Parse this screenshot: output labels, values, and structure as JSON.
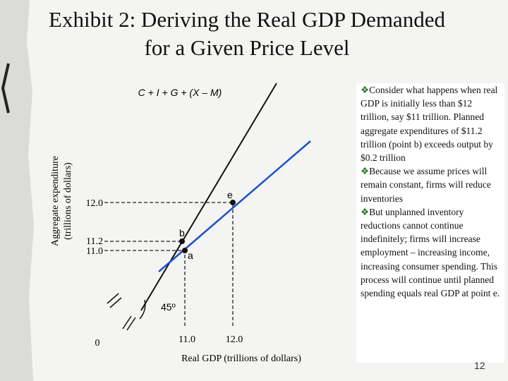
{
  "title": "Exhibit 2: Deriving the Real GDP Demanded for a Given Price Level",
  "diagram": {
    "line_label": "C + I + G + (X – M)",
    "y_axis_label": [
      "Aggregate expenditure",
      "(trillions of dollars)"
    ],
    "y_ticks": [
      "12.0",
      "11.2",
      "11.0"
    ],
    "x_ticks": [
      "11.0",
      "12.0"
    ],
    "origin": "0",
    "angle": "45º",
    "points": [
      "e",
      "b",
      "a"
    ],
    "x_axis_label": "Real GDP (trillions of dollars)"
  },
  "bullets": [
    "Consider what happens when real GDP is initially less than $12 trillion, say $11 trillion.  Planned aggregate expenditures of $11.2 trillion (point b) exceeds output by $0.2 trillion",
    "Because we assume prices will remain constant, firms will reduce inventories",
    "But unplanned inventory reductions cannot continue indefinitely; firms will increase employment – increasing income, increasing consumer spending.  This process will continue until planned spending equals real GDP at point e."
  ],
  "page_number": "12"
}
